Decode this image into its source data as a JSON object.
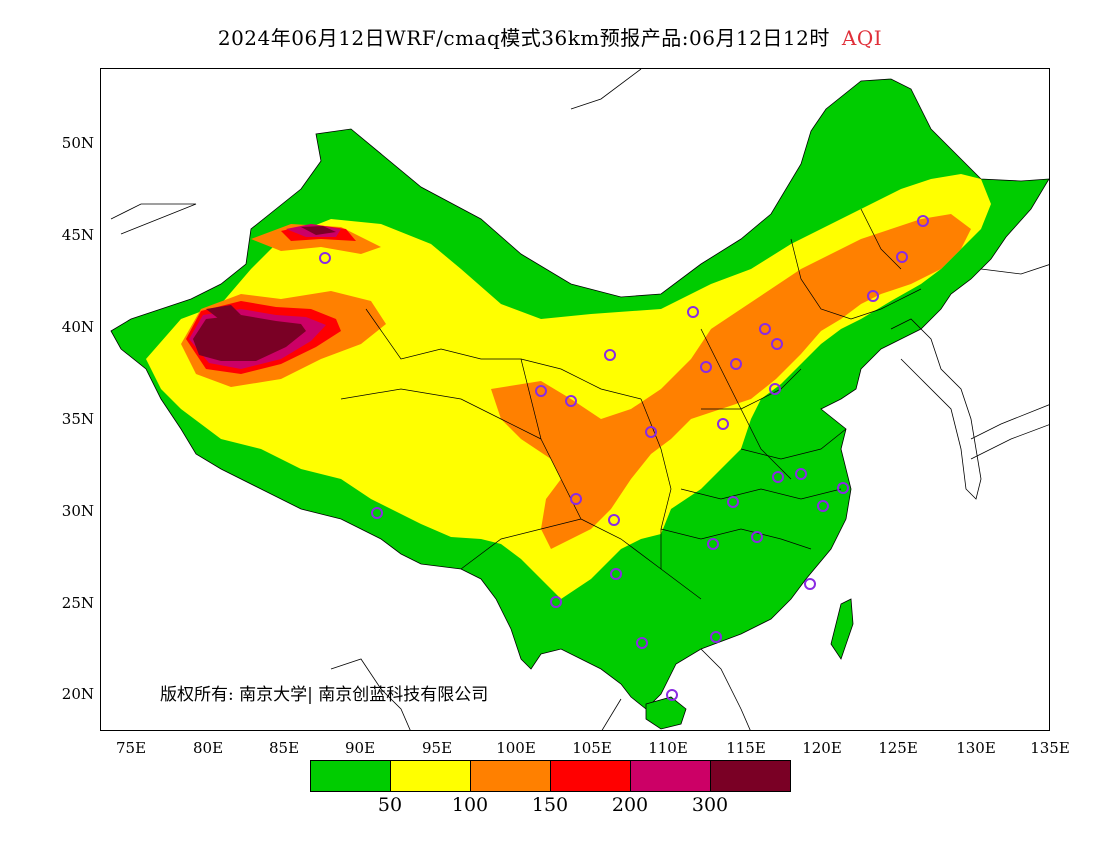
{
  "header": {
    "title": "2024年06月12日WRF/cmaq模式36km预报产品:06月12日12时",
    "variable": "AQI"
  },
  "axes": {
    "lat_labels": [
      "50N",
      "45N",
      "40N",
      "35N",
      "30N",
      "25N",
      "20N"
    ],
    "lon_labels": [
      "75E",
      "80E",
      "85E",
      "90E",
      "95E",
      "100E",
      "105E",
      "110E",
      "115E",
      "120E",
      "125E",
      "130E",
      "135E"
    ]
  },
  "copyright": "版权所有: 南京大学| 南京创蓝科技有限公司",
  "legend": {
    "colors": [
      "#00cc00",
      "#ffff00",
      "#ff8000",
      "#ff0000",
      "#cc0066",
      "#7a0025"
    ],
    "ticks": [
      "50",
      "100",
      "150",
      "200",
      "300"
    ]
  },
  "colors": {
    "good": "#00cc00",
    "moderate": "#ffff00",
    "sensitive": "#ff8000",
    "unhealthy": "#ff0000",
    "very_unhealthy": "#cc0066",
    "hazardous": "#7a0025",
    "station_marker": "#8a2be2"
  }
}
